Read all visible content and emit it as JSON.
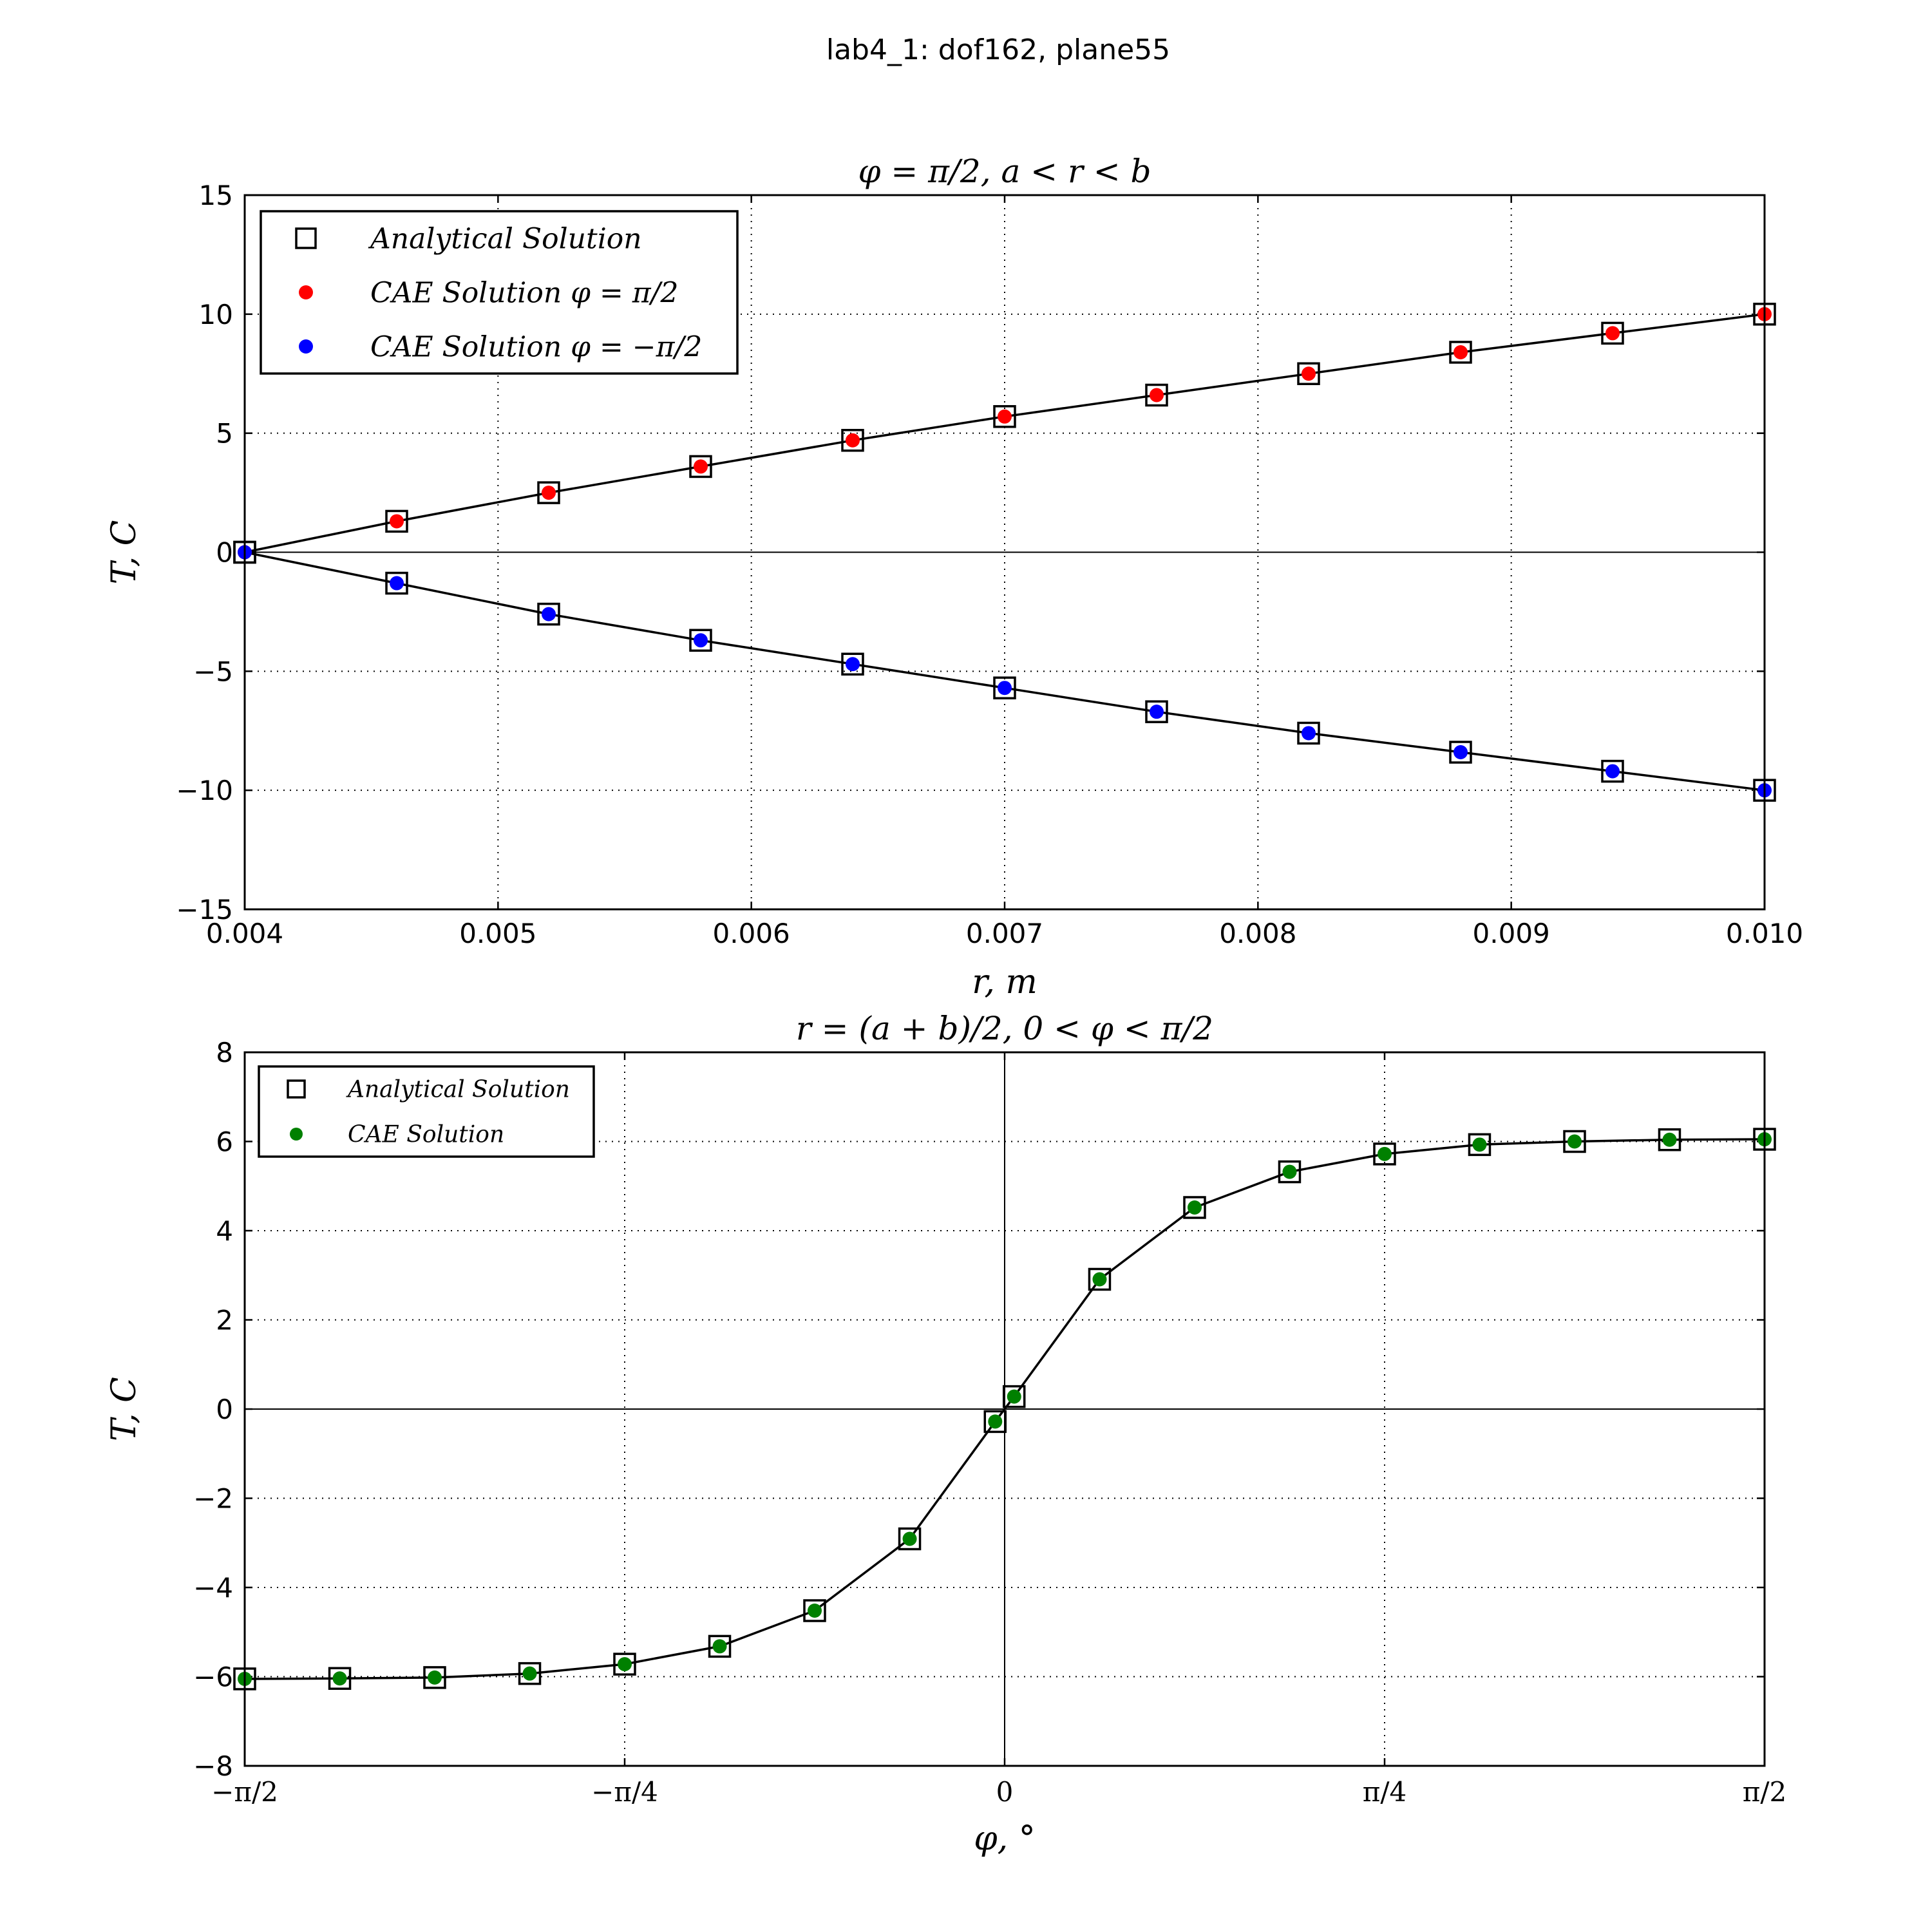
{
  "figure": {
    "suptitle": "lab4_1: dof162, plane55"
  },
  "chart_data": [
    {
      "type": "line",
      "title": "φ = π/2, a < r < b",
      "xlabel": "r, m",
      "ylabel": "T, C",
      "xlim": [
        0.004,
        0.01
      ],
      "ylim": [
        -15,
        15
      ],
      "xticks": [
        0.004,
        0.005,
        0.006,
        0.007,
        0.008,
        0.009,
        0.01
      ],
      "xtick_labels": [
        "0.004",
        "0.005",
        "0.006",
        "0.007",
        "0.008",
        "0.009",
        "0.010"
      ],
      "yticks": [
        -15,
        -10,
        -5,
        0,
        5,
        10,
        15
      ],
      "ytick_labels": [
        "−15",
        "−10",
        "−5",
        "0",
        "5",
        "10",
        "15"
      ],
      "grid": true,
      "legend_position": "upper-left",
      "legend": [
        {
          "label": "Analytical Solution",
          "marker": "square",
          "color": "#000000"
        },
        {
          "label": "CAE Solution φ = π/2",
          "marker": "circle",
          "color": "#ff0000"
        },
        {
          "label": "CAE Solution φ = −π/2",
          "marker": "circle",
          "color": "#0000ff"
        }
      ],
      "x": [
        0.004,
        0.0046,
        0.0052,
        0.0058,
        0.0064,
        0.007,
        0.0076,
        0.0082,
        0.0088,
        0.0094,
        0.01
      ],
      "series": [
        {
          "name": "Analytical Solution",
          "marker": "square",
          "color": "#000000",
          "values": [
            0,
            1.3,
            2.5,
            3.6,
            4.7,
            5.7,
            6.6,
            7.5,
            8.4,
            9.2,
            10.0
          ]
        },
        {
          "name": "Analytical Solution",
          "marker": "square",
          "color": "#000000",
          "values": [
            0,
            -1.3,
            -2.6,
            -3.7,
            -4.7,
            -5.7,
            -6.7,
            -7.6,
            -8.4,
            -9.2,
            -10.0
          ]
        },
        {
          "name": "CAE Solution φ = π/2",
          "marker": "circle",
          "color": "#ff0000",
          "values": [
            0,
            1.3,
            2.5,
            3.6,
            4.7,
            5.7,
            6.6,
            7.5,
            8.4,
            9.2,
            10.0
          ]
        },
        {
          "name": "CAE Solution φ = −π/2",
          "marker": "circle",
          "color": "#0000ff",
          "values": [
            0,
            -1.3,
            -2.6,
            -3.7,
            -4.7,
            -5.7,
            -6.7,
            -7.6,
            -8.4,
            -9.2,
            -10.0
          ]
        }
      ]
    },
    {
      "type": "line",
      "title": "r = (a + b)/2, 0 < φ < π/2",
      "xlabel": "φ, °",
      "ylabel": "T, C",
      "xlim": [
        -1.5708,
        1.5708
      ],
      "ylim": [
        -8,
        8
      ],
      "xticks": [
        -1.5708,
        -0.7854,
        0,
        0.7854,
        1.5708
      ],
      "xtick_labels": [
        "−π/2",
        "−π/4",
        "0",
        "π/4",
        "π/2"
      ],
      "yticks": [
        -8,
        -6,
        -4,
        -2,
        0,
        2,
        4,
        6,
        8
      ],
      "ytick_labels": [
        "−8",
        "−6",
        "−4",
        "−2",
        "0",
        "2",
        "4",
        "6",
        "8"
      ],
      "grid": true,
      "legend_position": "upper-left",
      "legend": [
        {
          "label": "Analytical Solution",
          "marker": "square",
          "color": "#000000"
        },
        {
          "label": "CAE Solution",
          "marker": "circle",
          "color": "#008000"
        }
      ],
      "x": [
        -1.5708,
        -1.3744,
        -1.1781,
        -0.9817,
        -0.7854,
        -0.589,
        -0.3927,
        -0.1963,
        -0.0196,
        0.0196,
        0.1963,
        0.3927,
        0.589,
        0.7854,
        0.9817,
        1.1781,
        1.3744,
        1.5708
      ],
      "series": [
        {
          "name": "Analytical Solution",
          "marker": "square",
          "color": "#000000",
          "values": [
            -6.05,
            -6.04,
            -6.02,
            -5.93,
            -5.72,
            -5.32,
            -4.52,
            -2.91,
            -0.28,
            0.28,
            2.91,
            4.52,
            5.32,
            5.72,
            5.93,
            6.0,
            6.04,
            6.05
          ]
        },
        {
          "name": "CAE Solution",
          "marker": "circle",
          "color": "#008000",
          "values": [
            -6.05,
            -6.04,
            -6.02,
            -5.93,
            -5.72,
            -5.32,
            -4.52,
            -2.91,
            -0.28,
            0.28,
            2.91,
            4.52,
            5.32,
            5.72,
            5.93,
            6.0,
            6.04,
            6.05
          ]
        }
      ]
    }
  ]
}
